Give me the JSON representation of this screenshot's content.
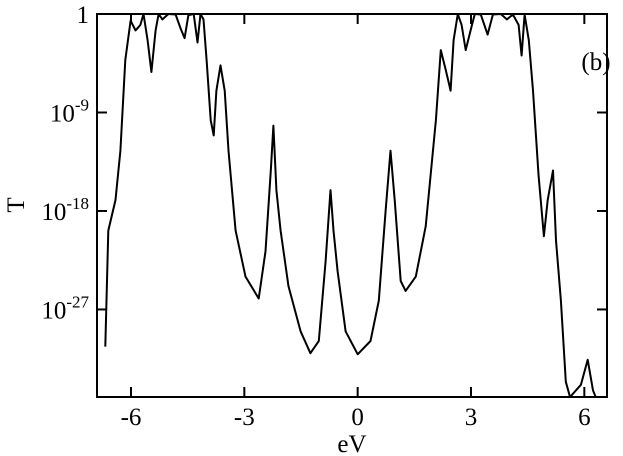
{
  "chart_data": {
    "type": "line",
    "annotation": "(b)",
    "xlabel": "eV",
    "ylabel": "T",
    "log_y": true,
    "color": "#000000",
    "xlim": [
      -6.9,
      6.6
    ],
    "xticks": [
      -6,
      -3,
      0,
      3,
      6
    ],
    "ylim": [
      1e-35,
      1
    ],
    "yticks": [
      1,
      {
        "value": 1e-09,
        "label": "10",
        "exponent": "-9"
      },
      {
        "value": 1e-18,
        "label": "10",
        "exponent": "-18"
      },
      {
        "value": 1e-27,
        "label": "10",
        "exponent": "-27"
      }
    ],
    "x": [
      -6.68,
      -6.6,
      -6.41,
      -6.28,
      -6.15,
      -6.01,
      -5.88,
      -5.75,
      -5.67,
      -5.56,
      -5.46,
      -5.35,
      -5.27,
      -5.17,
      -5.01,
      -4.82,
      -4.69,
      -4.58,
      -4.48,
      -4.34,
      -4.24,
      -4.16,
      -4.08,
      -4.0,
      -3.89,
      -3.81,
      -3.74,
      -3.63,
      -3.52,
      -3.42,
      -3.23,
      -2.97,
      -2.62,
      -2.44,
      -2.3,
      -2.23,
      -2.15,
      -2.04,
      -1.83,
      -1.51,
      -1.25,
      -1.03,
      -0.85,
      -0.72,
      -0.64,
      -0.53,
      -0.32,
      0.0,
      0.34,
      0.56,
      0.74,
      0.87,
      0.98,
      1.14,
      1.27,
      1.54,
      1.8,
      2.07,
      2.2,
      2.33,
      2.46,
      2.54,
      2.65,
      2.75,
      2.86,
      2.99,
      3.1,
      3.26,
      3.44,
      3.58,
      3.79,
      3.95,
      4.11,
      4.26,
      4.34,
      4.42,
      4.53,
      4.64,
      4.79,
      4.93,
      5.03,
      5.17,
      5.25,
      5.38,
      5.51,
      5.62,
      5.91,
      6.09,
      6.23,
      6.3
    ],
    "values": [
      4e-31,
      1.6e-20,
      1e-17,
      3.2e-13,
      6.3e-05,
      0.25,
      0.032,
      0.1,
      1,
      0.004,
      5e-06,
      0.032,
      1,
      0.32,
      1,
      0.9,
      0.05,
      0.0063,
      0.8,
      1,
      0.0025,
      1,
      0.32,
      6.3e-05,
      2e-10,
      8e-12,
      1e-07,
      2e-05,
      1e-07,
      3.2e-13,
      1.6e-20,
      1e-24,
      1e-26,
      2e-22,
      5e-15,
      6.3e-11,
      8e-17,
      1.6e-20,
      1.3e-25,
      1e-29,
      1e-31,
      1.3e-30,
      2.5e-23,
      8e-17,
      1.6e-20,
      3.2e-24,
      1e-29,
      8e-32,
      1.3e-30,
      6.3e-27,
      1e-18,
      3.2e-13,
      1e-17,
      4e-25,
      5e-26,
      1e-24,
      4e-20,
      2e-10,
      0.0005,
      8e-06,
      1e-07,
      0.004,
      1,
      0.1,
      0.0005,
      0.032,
      1,
      0.9,
      0.013,
      0.9,
      1,
      0.32,
      0.9,
      0.1,
      0.00016,
      0.9,
      0.004,
      1e-07,
      1.6e-15,
      5e-21,
      1e-17,
      5e-15,
      2e-21,
      6.3e-27,
      2.5e-34,
      1e-35,
      1.3e-34,
      2.5e-32,
      4e-35,
      1e-35
    ]
  }
}
